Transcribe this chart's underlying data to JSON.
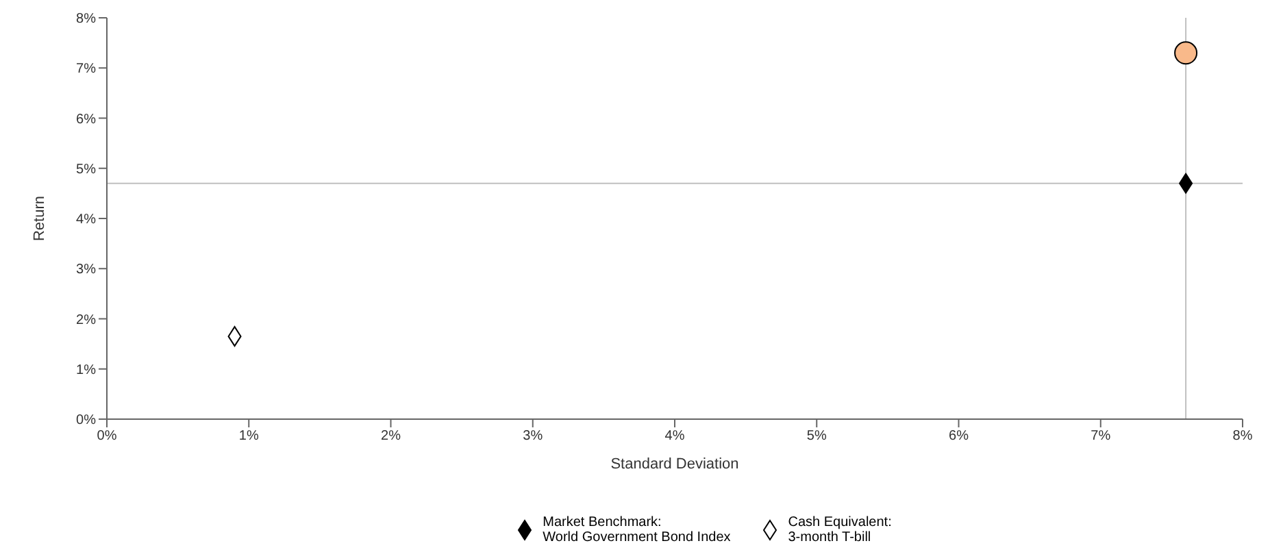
{
  "chart_data": {
    "type": "scatter",
    "xlabel": "Standard Deviation",
    "ylabel": "Return",
    "xlim": [
      0,
      8
    ],
    "ylim": [
      0,
      8
    ],
    "xticks": [
      {
        "value": 0,
        "label": "0%"
      },
      {
        "value": 1,
        "label": "1%"
      },
      {
        "value": 2,
        "label": "2%"
      },
      {
        "value": 3,
        "label": "3%"
      },
      {
        "value": 4,
        "label": "4%"
      },
      {
        "value": 5,
        "label": "5%"
      },
      {
        "value": 6,
        "label": "6%"
      },
      {
        "value": 7,
        "label": "7%"
      },
      {
        "value": 8,
        "label": "8%"
      }
    ],
    "yticks": [
      {
        "value": 0,
        "label": "0%"
      },
      {
        "value": 1,
        "label": "1%"
      },
      {
        "value": 2,
        "label": "2%"
      },
      {
        "value": 3,
        "label": "3%"
      },
      {
        "value": 4,
        "label": "4%"
      },
      {
        "value": 5,
        "label": "5%"
      },
      {
        "value": 6,
        "label": "6%"
      },
      {
        "value": 7,
        "label": "7%"
      },
      {
        "value": 8,
        "label": "8%"
      }
    ],
    "ref_lines": [
      {
        "axis": "x",
        "value": 7.6,
        "color": "#c0c0c0"
      },
      {
        "axis": "y",
        "value": 4.7,
        "color": "#c0c0c0"
      }
    ],
    "legend": "bottom",
    "x": [
      0.9,
      7.6
    ],
    "series": [
      {
        "color": "#f9b98a",
        "marker": "circle",
        "values": [
          null,
          7.3
        ]
      },
      {
        "name": "Market Benchmark:\nWorld Government Bond Index",
        "color": "#000000",
        "marker": "diamond",
        "values": [
          null,
          4.7
        ]
      },
      {
        "name": "Cash Equivalent:\n3-month T-bill",
        "color": "#ffffff",
        "marker": "diamond",
        "values": [
          1.65,
          null
        ]
      }
    ]
  }
}
